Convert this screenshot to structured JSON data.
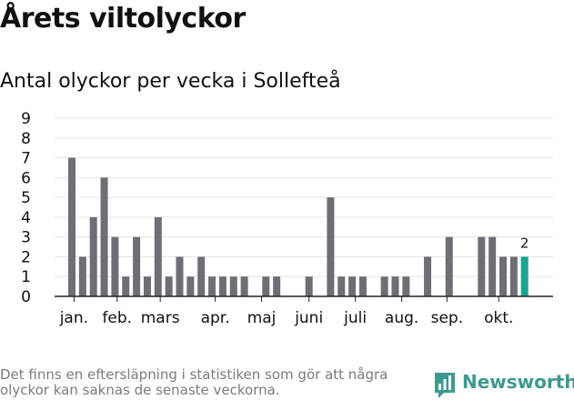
{
  "title": "Årets viltolyckor",
  "subtitle": "Antal olyckor per vecka i Sollefteå",
  "footnote": "Det finns en eftersläpning i statistiken som gör att några olyckor kan saknas de senaste veckorna.",
  "brand": {
    "name": "Newsworthy",
    "icon": "newsworthy-logo-icon"
  },
  "colors": {
    "bar": "#6f6e73",
    "highlight": "#17a596",
    "grid": "#e3e3e3",
    "axis": "#222222"
  },
  "chart_data": {
    "type": "bar",
    "title": "Antal olyckor per vecka i Sollefteå",
    "xlabel": "",
    "ylabel": "",
    "ylim": [
      0,
      9
    ],
    "yticks": [
      "0",
      "1",
      "2",
      "3",
      "4",
      "5",
      "6",
      "7",
      "8",
      "9"
    ],
    "weeks": [
      1,
      2,
      3,
      4,
      5,
      6,
      7,
      8,
      9,
      10,
      11,
      12,
      13,
      14,
      15,
      16,
      17,
      18,
      19,
      20,
      21,
      22,
      23,
      24,
      25,
      26,
      27,
      28,
      29,
      30,
      31,
      32,
      33,
      34,
      35,
      36,
      37,
      38,
      39,
      40,
      41,
      42,
      43
    ],
    "values": [
      7,
      2,
      4,
      6,
      3,
      1,
      3,
      1,
      4,
      1,
      2,
      1,
      2,
      1,
      1,
      1,
      1,
      0,
      1,
      1,
      0,
      0,
      1,
      0,
      5,
      1,
      1,
      1,
      0,
      1,
      1,
      1,
      0,
      2,
      0,
      3,
      0,
      0,
      3,
      3,
      2,
      2,
      2
    ],
    "highlight_index": 42,
    "last_value_label": "2",
    "month_ticks": [
      {
        "label": "jan.",
        "week": 1.2
      },
      {
        "label": "feb.",
        "week": 5.2
      },
      {
        "label": "mars",
        "week": 9.2
      },
      {
        "label": "apr.",
        "week": 14.3
      },
      {
        "label": "maj",
        "week": 18.6
      },
      {
        "label": "juni",
        "week": 23.0
      },
      {
        "label": "juli",
        "week": 27.3
      },
      {
        "label": "aug.",
        "week": 31.6
      },
      {
        "label": "sep.",
        "week": 35.8
      },
      {
        "label": "okt.",
        "week": 40.6
      }
    ]
  }
}
